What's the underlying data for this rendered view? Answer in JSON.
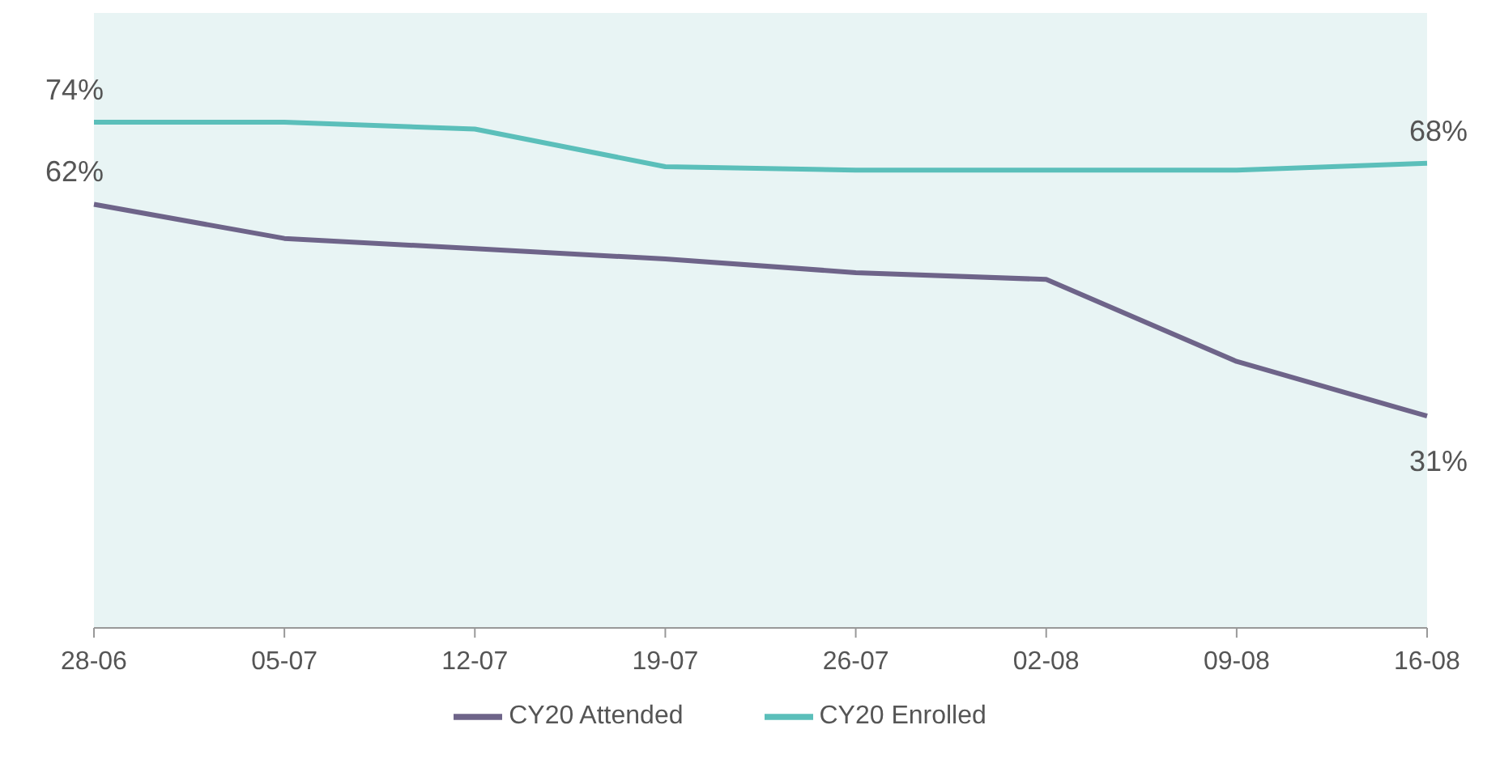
{
  "chart_data": {
    "type": "line",
    "categories": [
      "28-06",
      "05-07",
      "12-07",
      "19-07",
      "26-07",
      "02-08",
      "09-08",
      "16-08"
    ],
    "series": [
      {
        "name": "CY20 Enrolled",
        "color": "#5bbfba",
        "values": [
          74,
          74,
          73,
          67.5,
          67,
          67,
          67,
          68
        ],
        "value_labels": [
          "74%",
          null,
          null,
          null,
          null,
          null,
          null,
          "68%"
        ]
      },
      {
        "name": "CY20 Attended",
        "color": "#6e6489",
        "values": [
          62,
          57,
          55.5,
          54,
          52,
          51,
          39,
          31
        ],
        "value_labels": [
          "62%",
          null,
          null,
          null,
          null,
          null,
          null,
          "31%"
        ]
      }
    ],
    "ylim": [
      0,
      90
    ],
    "tick_labels": "x",
    "grid": false,
    "legend": "bottom",
    "marker": "none",
    "line_style": "solid"
  }
}
